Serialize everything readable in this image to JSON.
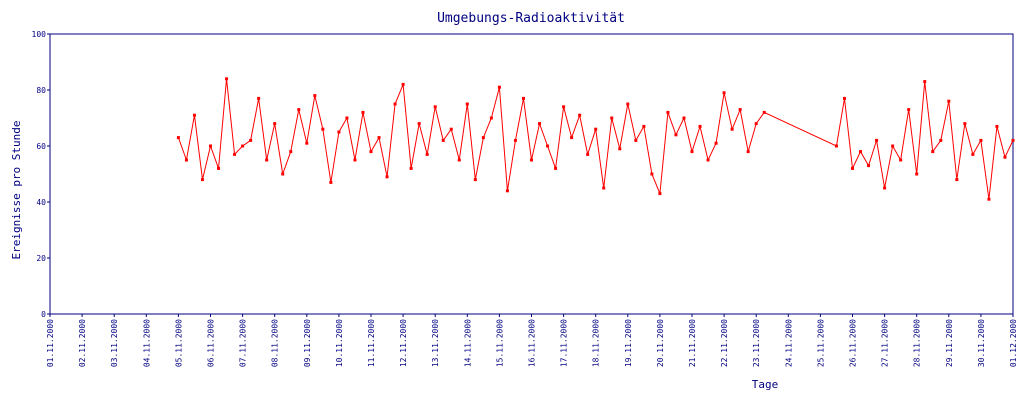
{
  "chart_data": {
    "type": "line",
    "title": "Umgebungs-Radioaktivität",
    "xlabel": "Tage",
    "ylabel": "Ereignisse pro Stunde",
    "xlim": [
      0,
      30
    ],
    "ylim": [
      0,
      100
    ],
    "yticks": [
      0,
      20,
      40,
      60,
      80,
      100
    ],
    "xticks": [
      {
        "value": 0,
        "label": "01.11.2000"
      },
      {
        "value": 1,
        "label": "02.11.2000"
      },
      {
        "value": 2,
        "label": "03.11.2000"
      },
      {
        "value": 3,
        "label": "04.11.2000"
      },
      {
        "value": 4,
        "label": "05.11.2000"
      },
      {
        "value": 5,
        "label": "06.11.2000"
      },
      {
        "value": 6,
        "label": "07.11.2000"
      },
      {
        "value": 7,
        "label": "08.11.2000"
      },
      {
        "value": 8,
        "label": "09.11.2000"
      },
      {
        "value": 9,
        "label": "10.11.2000"
      },
      {
        "value": 10,
        "label": "11.11.2000"
      },
      {
        "value": 11,
        "label": "12.11.2000"
      },
      {
        "value": 12,
        "label": "13.11.2000"
      },
      {
        "value": 13,
        "label": "14.11.2000"
      },
      {
        "value": 14,
        "label": "15.11.2000"
      },
      {
        "value": 15,
        "label": "16.11.2000"
      },
      {
        "value": 16,
        "label": "17.11.2000"
      },
      {
        "value": 17,
        "label": "18.11.2000"
      },
      {
        "value": 18,
        "label": "19.11.2000"
      },
      {
        "value": 19,
        "label": "20.11.2000"
      },
      {
        "value": 20,
        "label": "21.11.2000"
      },
      {
        "value": 21,
        "label": "22.11.2000"
      },
      {
        "value": 22,
        "label": "23.11.2000"
      },
      {
        "value": 23,
        "label": "24.11.2000"
      },
      {
        "value": 24,
        "label": "25.11.2000"
      },
      {
        "value": 25,
        "label": "26.11.2000"
      },
      {
        "value": 26,
        "label": "27.11.2000"
      },
      {
        "value": 27,
        "label": "28.11.2000"
      },
      {
        "value": 28,
        "label": "29.11.2000"
      },
      {
        "value": 29,
        "label": "30.11.2000"
      },
      {
        "value": 30,
        "label": "01.12.2000"
      }
    ],
    "series": [
      {
        "color": "#ff0000",
        "x": [
          4,
          4.25,
          4.5,
          4.75,
          5,
          5.25,
          5.5,
          5.75,
          6,
          6.25,
          6.5,
          6.75,
          7,
          7.25,
          7.5,
          7.75,
          8,
          8.25,
          8.5,
          8.75,
          9,
          9.25,
          9.5,
          9.75,
          10,
          10.25,
          10.5,
          10.75,
          11,
          11.25,
          11.5,
          11.75,
          12,
          12.25,
          12.5,
          12.75,
          13,
          13.25,
          13.5,
          13.75,
          14,
          14.25,
          14.5,
          14.75,
          15,
          15.25,
          15.5,
          15.75,
          16,
          16.25,
          16.5,
          16.75,
          17,
          17.25,
          17.5,
          17.75,
          18,
          18.25,
          18.5,
          18.75,
          19,
          19.25,
          19.5,
          19.75,
          20,
          20.25,
          20.5,
          20.75,
          21,
          21.25,
          21.5,
          21.75,
          22,
          22.25,
          24.5,
          24.75,
          25,
          25.25,
          25.5,
          25.75,
          26,
          26.25,
          26.5,
          26.75,
          27,
          27.25,
          27.5,
          27.75,
          28,
          28.25,
          28.5,
          28.75,
          29,
          29.25,
          29.5,
          29.75,
          30
        ],
        "values": [
          63,
          55,
          71,
          48,
          60,
          52,
          84,
          57,
          60,
          62,
          77,
          55,
          68,
          50,
          58,
          73,
          61,
          78,
          66,
          47,
          65,
          70,
          55,
          72,
          58,
          63,
          49,
          75,
          82,
          52,
          68,
          57,
          74,
          62,
          66,
          55,
          75,
          48,
          63,
          70,
          81,
          44,
          62,
          77,
          55,
          68,
          60,
          52,
          74,
          63,
          71,
          57,
          66,
          45,
          70,
          59,
          75,
          62,
          67,
          50,
          43,
          72,
          64,
          70,
          58,
          67,
          55,
          61,
          79,
          66,
          73,
          58,
          68,
          72,
          60,
          77,
          52,
          58,
          53,
          62,
          45,
          60,
          55,
          73,
          50,
          83,
          58,
          62,
          76,
          48,
          68,
          57,
          62,
          41,
          67,
          56,
          62
        ]
      }
    ]
  }
}
